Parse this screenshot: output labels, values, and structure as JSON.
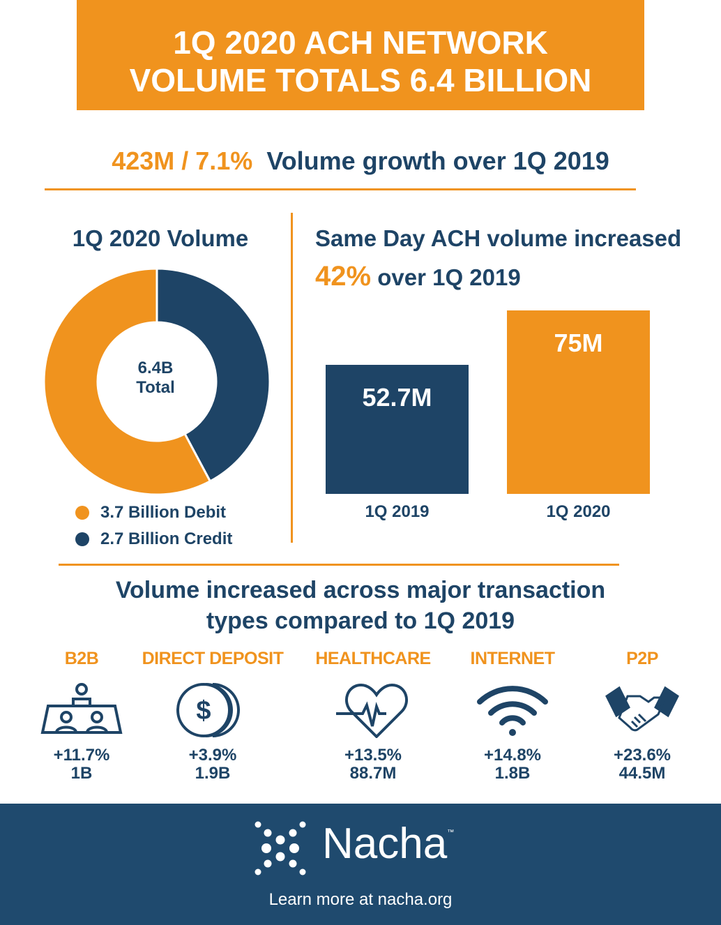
{
  "header": {
    "line1": "1Q 2020 ACH NETWORK",
    "line2": "VOLUME TOTALS 6.4 BILLION"
  },
  "growth": {
    "highlight": "423M / 7.1%",
    "text": "Volume growth over 1Q 2019"
  },
  "colors": {
    "orange": "#f0931e",
    "navy": "#1e4466",
    "footer": "#1f4a6e"
  },
  "donut": {
    "title": "1Q 2020 Volume",
    "center_line1": "6.4B",
    "center_line2": "Total",
    "legend": [
      {
        "label": "3.7 Billion Debit",
        "color": "#f0931e"
      },
      {
        "label": "2.7 Billion Credit",
        "color": "#1e4466"
      }
    ]
  },
  "same_day": {
    "title": "Same Day ACH volume increased",
    "highlight": "42%",
    "subtitle": "over 1Q 2019"
  },
  "chart_data": [
    {
      "type": "pie",
      "title": "1Q 2020 Volume",
      "categories": [
        "Debit",
        "Credit"
      ],
      "values": [
        3.7,
        2.7
      ],
      "unit": "Billion",
      "total": "6.4B Total"
    },
    {
      "type": "bar",
      "title": "Same Day ACH volume increased 42% over 1Q 2019",
      "categories": [
        "1Q 2019",
        "1Q 2020"
      ],
      "values": [
        52.7,
        75
      ],
      "data_labels": [
        "52.7M",
        "75M"
      ],
      "colors": [
        "#1e4466",
        "#f0931e"
      ]
    }
  ],
  "types": {
    "heading_line1": "Volume increased across major transaction",
    "heading_line2": "types compared to 1Q 2019",
    "items": [
      {
        "label": "B2B",
        "icon": "meeting-table-icon",
        "change": "+11.7%",
        "volume": "1B"
      },
      {
        "label": "DIRECT DEPOSIT",
        "icon": "dollar-coin-icon",
        "change": "+3.9%",
        "volume": "1.9B"
      },
      {
        "label": "HEALTHCARE",
        "icon": "heartbeat-icon",
        "change": "+13.5%",
        "volume": "88.7M"
      },
      {
        "label": "INTERNET",
        "icon": "wifi-icon",
        "change": "+14.8%",
        "volume": "1.8B"
      },
      {
        "label": "P2P",
        "icon": "handshake-icon",
        "change": "+23.6%",
        "volume": "44.5M"
      }
    ]
  },
  "footer": {
    "brand": "Nacha",
    "tm": "™",
    "link": "Learn more at nacha.org"
  }
}
